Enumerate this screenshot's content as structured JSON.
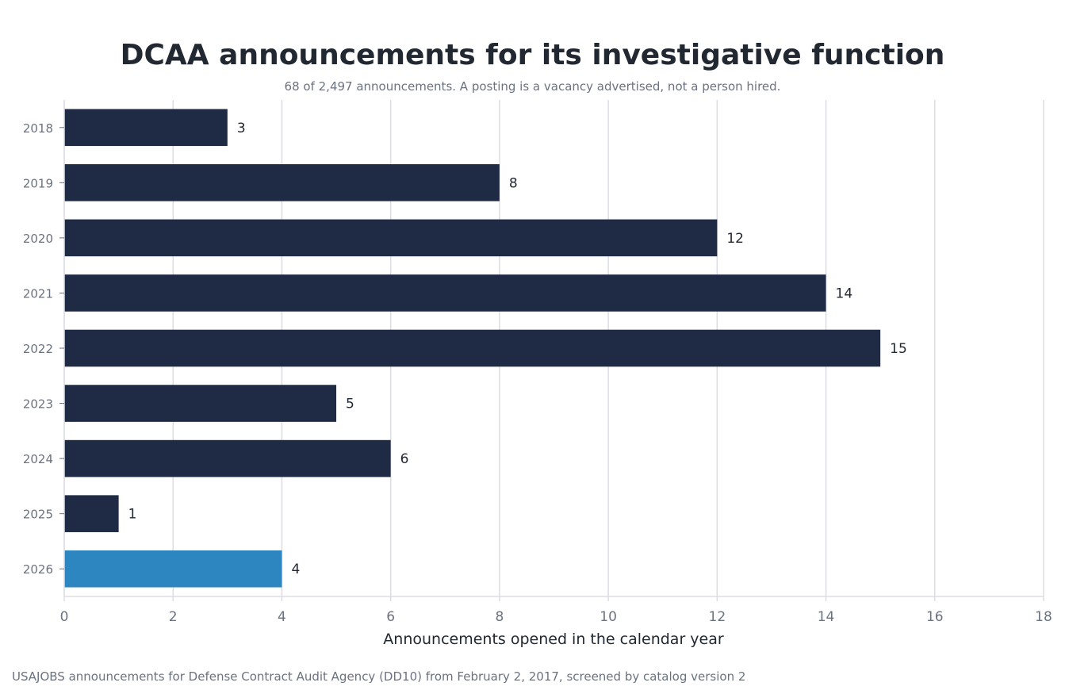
{
  "header": {
    "title": "DCAA announcements for its investigative function",
    "subtitle": "68 of 2,497 announcements. A posting is a vacancy advertised, not a person hired."
  },
  "footer": {
    "source": "USAJOBS announcements for Defense Contract Audit Agency (DD10) from February 2, 2017, screened by catalog version 2"
  },
  "colors": {
    "bar": "#1f2a44",
    "highlight": "#2e86c1",
    "grid": "#dcdde3",
    "tick_text": "#6b7280",
    "label_text": "#222831"
  },
  "chart_data": {
    "type": "bar",
    "orientation": "horizontal",
    "title": "DCAA announcements for its investigative function",
    "subtitle": "68 of 2,497 announcements. A posting is a vacancy advertised, not a person hired.",
    "xlabel": "Announcements opened in the calendar year",
    "ylabel": "",
    "categories": [
      "2018",
      "2019",
      "2020",
      "2021",
      "2022",
      "2023",
      "2024",
      "2025",
      "2026"
    ],
    "values": [
      3,
      8,
      12,
      14,
      15,
      5,
      6,
      1,
      4
    ],
    "highlight_categories": [
      "2026"
    ],
    "xlim": [
      0,
      18
    ],
    "xticks": [
      0,
      2,
      4,
      6,
      8,
      10,
      12,
      14,
      16,
      18
    ],
    "grid": "vertical",
    "data_labels": true,
    "legend": "none"
  }
}
